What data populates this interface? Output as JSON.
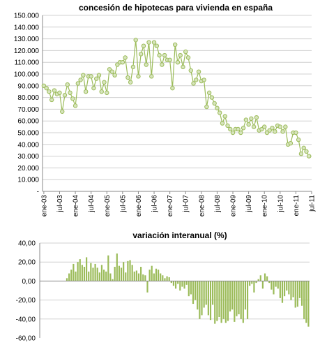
{
  "chart_data": [
    {
      "type": "line",
      "title": "concesión de hipotecas para vivienda en españa",
      "ylim": [
        0,
        150000
      ],
      "y_ticks": [
        "-",
        "10.000",
        "20.000",
        "30.000",
        "40.000",
        "50.000",
        "60.000",
        "70.000",
        "80.000",
        "90.000",
        "100.000",
        "110.000",
        "120.000",
        "130.000",
        "140.000",
        "150.000"
      ],
      "y_tick_values": [
        0,
        10000,
        20000,
        30000,
        40000,
        50000,
        60000,
        70000,
        80000,
        90000,
        100000,
        110000,
        120000,
        130000,
        140000,
        150000
      ],
      "x_tick_labels": [
        "ene-03",
        "jul-03",
        "ene-04",
        "jul-04",
        "ene-05",
        "jul-05",
        "ene-06",
        "jul-06",
        "ene-07",
        "jul-07",
        "ene-08",
        "jul-08",
        "ene-09",
        "jul-09",
        "ene-10",
        "jul-10",
        "ene-11",
        "jul-11"
      ],
      "x_tick_index": [
        0,
        6,
        12,
        18,
        24,
        30,
        36,
        42,
        48,
        54,
        60,
        66,
        72,
        78,
        84,
        90,
        96,
        102
      ],
      "grid": "horizontal",
      "series": [
        {
          "color": "#9bbb59",
          "values": [
            90000,
            88000,
            85000,
            78000,
            86000,
            83000,
            84000,
            68000,
            82000,
            91000,
            84000,
            79000,
            73000,
            92000,
            95000,
            99000,
            85000,
            98000,
            98000,
            88000,
            96000,
            99000,
            85000,
            93000,
            84000,
            104000,
            102000,
            99000,
            108000,
            110000,
            110000,
            114000,
            97000,
            93000,
            106000,
            129000,
            98000,
            117000,
            124000,
            108000,
            127000,
            98000,
            127000,
            124000,
            116000,
            108000,
            116000,
            112000,
            112000,
            88000,
            125000,
            110000,
            116000,
            106000,
            119000,
            114000,
            103000,
            92000,
            95000,
            102000,
            94000,
            95000,
            72000,
            84000,
            80000,
            75000,
            71000,
            67000,
            58000,
            64000,
            56000,
            53000,
            50000,
            53000,
            53000,
            50000,
            54000,
            61000,
            57000,
            62000,
            55000,
            63000,
            52000,
            53000,
            55000,
            50000,
            52000,
            54000,
            51000,
            56000,
            55000,
            51000,
            55000,
            40000,
            41000,
            50000,
            50000,
            44000,
            32000,
            37000,
            34000,
            30000
          ]
        }
      ]
    },
    {
      "type": "bar",
      "title": "variación interanual (%)",
      "ylim": [
        -60,
        40
      ],
      "y_ticks": [
        "40,00",
        "20,00",
        "0,00",
        "-20,00",
        "-40,00",
        "-60,00"
      ],
      "y_tick_values": [
        40,
        20,
        0,
        -20,
        -40,
        -60
      ],
      "grid": "horizontal",
      "series": [
        {
          "color": "#9bbb59",
          "values": [
            0,
            0,
            0,
            0,
            0,
            0,
            0,
            0,
            0,
            0,
            0,
            0,
            3,
            8,
            12,
            18,
            10,
            20,
            23,
            17,
            15,
            25,
            10,
            19,
            14,
            18,
            14,
            9,
            17,
            12,
            10,
            27,
            8,
            2,
            15,
            29,
            16,
            14,
            20,
            9,
            21,
            22,
            17,
            10,
            11,
            8,
            15,
            7,
            6,
            -12,
            12,
            16,
            8,
            13,
            12,
            8,
            6,
            3,
            5,
            4,
            -2,
            -5,
            -8,
            -3,
            -10,
            -6,
            -8,
            -4,
            -16,
            -14,
            -24,
            -20,
            -30,
            -40,
            -36,
            -28,
            -25,
            -36,
            -41,
            -25,
            -45,
            -42,
            -38,
            -44,
            -40,
            -44,
            -42,
            -32,
            -30,
            -43,
            -37,
            -35,
            -40,
            -44,
            -30,
            -40,
            -5,
            -3,
            -12,
            -2,
            2,
            6,
            -8,
            8,
            5,
            -2,
            -9,
            -14,
            -6,
            -8,
            -18,
            -23,
            -16,
            -10,
            -14,
            -20,
            -17,
            -28,
            -27,
            -18,
            -26,
            -40,
            -44,
            -48
          ]
        }
      ]
    }
  ]
}
